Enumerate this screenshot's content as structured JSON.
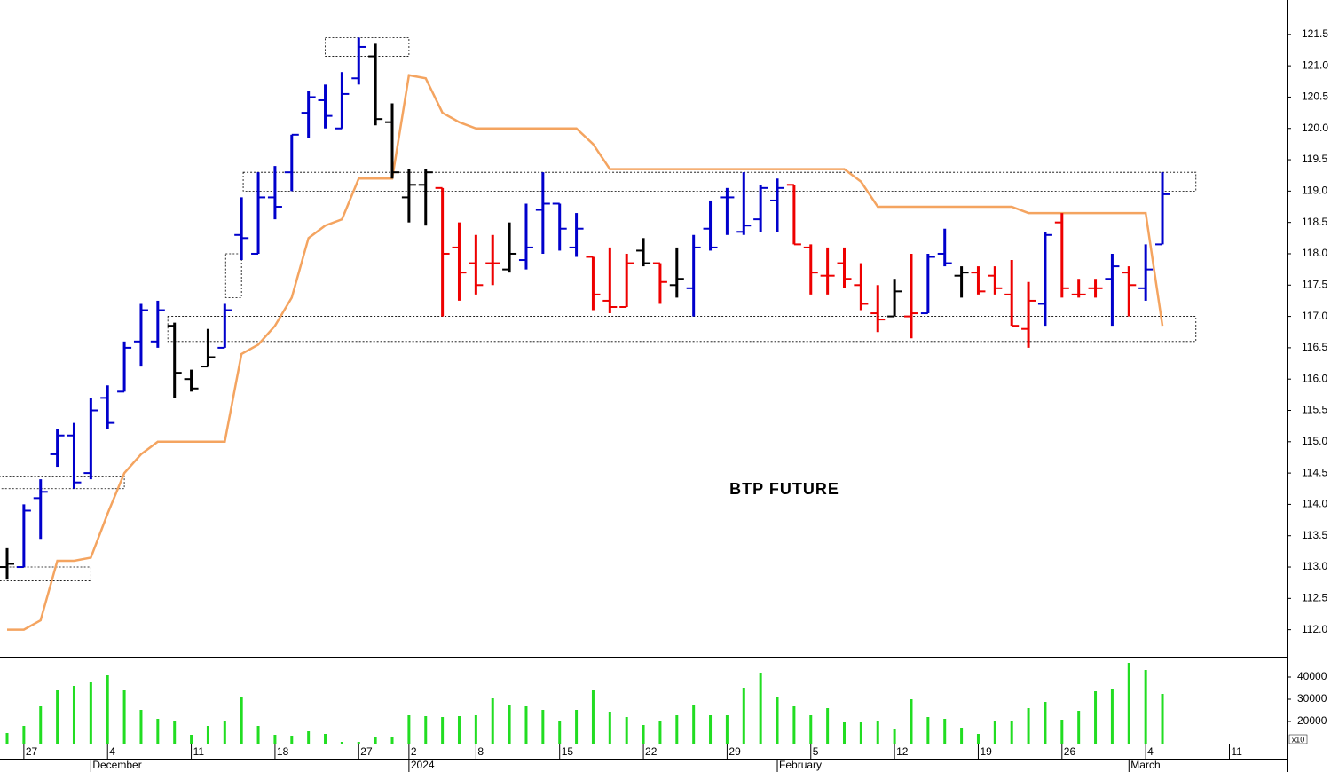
{
  "chart_data": [
    {
      "type": "ohlc",
      "title": "BTP FUTURE",
      "categories": [
        null,
        "27",
        null,
        null,
        null,
        null,
        "4",
        null,
        null,
        null,
        null,
        "11",
        null,
        null,
        null,
        null,
        "18",
        null,
        null,
        null,
        null,
        "27",
        null,
        null,
        "2",
        null,
        null,
        null,
        "8",
        null,
        null,
        null,
        null,
        "15",
        null,
        null,
        null,
        null,
        "22",
        null,
        null,
        null,
        null,
        "29",
        null,
        null,
        null,
        null,
        "5",
        null,
        null,
        null,
        null,
        "12",
        null,
        null,
        null,
        null,
        "19",
        null,
        null,
        null,
        null,
        "26",
        null,
        null,
        null,
        null,
        "4",
        null,
        null,
        null,
        null,
        "11",
        null,
        null,
        null
      ],
      "months": [
        null,
        null,
        null,
        null,
        null,
        "December",
        null,
        null,
        null,
        null,
        null,
        null,
        null,
        null,
        null,
        null,
        null,
        null,
        null,
        null,
        null,
        null,
        null,
        null,
        "2024",
        null,
        null,
        null,
        null,
        null,
        null,
        null,
        null,
        null,
        null,
        null,
        null,
        null,
        null,
        null,
        null,
        null,
        null,
        null,
        null,
        null,
        "February",
        null,
        null,
        null,
        null,
        null,
        null,
        null,
        null,
        null,
        null,
        null,
        null,
        null,
        null,
        null,
        null,
        null,
        null,
        null,
        null,
        "March",
        null,
        null,
        null,
        null,
        null,
        null,
        null,
        null,
        null
      ],
      "open": [
        113.0,
        113.0,
        114.1,
        114.8,
        115.1,
        114.5,
        115.7,
        115.8,
        116.6,
        116.6,
        116.85,
        116.0,
        116.2,
        116.5,
        118.3,
        118.0,
        118.9,
        119.3,
        120.25,
        120.45,
        120.0,
        120.8,
        121.15,
        120.1,
        118.9,
        119.1,
        119.05,
        118.1,
        117.85,
        117.85,
        117.75,
        117.9,
        118.7,
        118.8,
        118.1,
        117.95,
        117.25,
        117.15,
        118.05,
        117.85,
        117.5,
        117.45,
        118.4,
        118.9,
        118.35,
        118.55,
        118.85,
        119.1,
        118.1,
        117.65,
        117.85,
        117.5,
        117.05,
        117.0,
        117.0,
        117.05,
        118.0,
        117.65,
        117.7,
        117.65,
        117.35,
        116.8,
        117.2,
        118.5,
        117.35,
        117.45,
        117.6,
        117.7,
        117.45,
        118.15,
        null,
        null,
        null,
        null,
        null,
        null,
        null
      ],
      "high": [
        113.3,
        114.0,
        114.4,
        115.2,
        115.3,
        115.7,
        115.9,
        116.6,
        117.2,
        117.25,
        116.9,
        116.15,
        116.8,
        117.2,
        118.9,
        119.3,
        119.4,
        119.9,
        120.6,
        120.7,
        120.9,
        121.45,
        121.35,
        120.4,
        119.35,
        119.35,
        119.05,
        118.5,
        118.3,
        118.3,
        118.5,
        118.8,
        119.3,
        118.8,
        118.65,
        117.95,
        118.1,
        118.0,
        118.25,
        117.85,
        118.1,
        118.3,
        118.85,
        119.05,
        119.3,
        119.1,
        119.2,
        119.1,
        118.15,
        118.1,
        118.1,
        117.85,
        117.5,
        117.6,
        118.0,
        118.0,
        118.4,
        117.8,
        117.8,
        117.8,
        117.9,
        117.55,
        118.35,
        118.65,
        117.6,
        117.6,
        118.0,
        117.8,
        118.15,
        119.3,
        null,
        null,
        null,
        null,
        null,
        null,
        null
      ],
      "low": [
        112.8,
        113.0,
        113.45,
        114.6,
        114.25,
        114.4,
        115.2,
        115.8,
        116.2,
        116.5,
        115.7,
        115.8,
        116.2,
        116.5,
        117.9,
        118.0,
        118.55,
        119.0,
        119.85,
        120.0,
        120.0,
        120.7,
        120.05,
        119.2,
        118.5,
        118.45,
        117.0,
        117.25,
        117.35,
        117.5,
        117.7,
        117.75,
        118.0,
        118.05,
        117.95,
        117.1,
        117.05,
        117.15,
        117.8,
        117.2,
        117.3,
        117.0,
        118.05,
        118.3,
        118.3,
        118.35,
        118.35,
        118.15,
        117.35,
        117.35,
        117.45,
        117.1,
        116.75,
        117.0,
        116.65,
        117.05,
        117.8,
        117.3,
        117.35,
        117.35,
        116.85,
        116.5,
        116.85,
        117.3,
        117.3,
        117.3,
        116.85,
        117.0,
        117.25,
        118.15,
        null,
        null,
        null,
        null,
        null,
        null,
        null
      ],
      "close": [
        113.05,
        113.9,
        114.2,
        115.1,
        114.35,
        115.5,
        115.3,
        116.5,
        117.1,
        117.1,
        116.1,
        115.85,
        116.35,
        117.1,
        118.25,
        118.9,
        118.75,
        119.9,
        120.5,
        120.2,
        120.55,
        121.3,
        120.15,
        119.3,
        119.1,
        119.3,
        118.0,
        117.7,
        117.5,
        117.85,
        118.0,
        118.1,
        118.8,
        118.4,
        118.4,
        117.35,
        117.15,
        117.85,
        117.85,
        117.55,
        117.6,
        118.1,
        118.1,
        118.9,
        118.45,
        119.05,
        119.05,
        118.15,
        117.7,
        117.65,
        117.6,
        117.2,
        116.95,
        117.4,
        117.05,
        117.95,
        117.85,
        117.7,
        117.4,
        117.45,
        116.85,
        117.25,
        118.3,
        117.45,
        117.35,
        117.45,
        117.8,
        117.5,
        117.75,
        118.95,
        null,
        null,
        null,
        null,
        null,
        null,
        null
      ],
      "colors": [
        "#000000",
        "#0000cc",
        "#0000cc",
        "#0000cc",
        "#0000cc",
        "#0000cc",
        "#0000cc",
        "#0000cc",
        "#0000cc",
        "#0000cc",
        "#000000",
        "#000000",
        "#000000",
        "#0000cc",
        "#0000cc",
        "#0000cc",
        "#0000cc",
        "#0000cc",
        "#0000cc",
        "#0000cc",
        "#0000cc",
        "#0000cc",
        "#000000",
        "#000000",
        "#000000",
        "#000000",
        "#ee0000",
        "#ee0000",
        "#ee0000",
        "#ee0000",
        "#000000",
        "#0000cc",
        "#0000cc",
        "#0000cc",
        "#0000cc",
        "#ee0000",
        "#ee0000",
        "#ee0000",
        "#000000",
        "#ee0000",
        "#000000",
        "#0000cc",
        "#0000cc",
        "#0000cc",
        "#0000cc",
        "#0000cc",
        "#0000cc",
        "#ee0000",
        "#ee0000",
        "#ee0000",
        "#ee0000",
        "#ee0000",
        "#ee0000",
        "#000000",
        "#ee0000",
        "#0000cc",
        "#0000cc",
        "#000000",
        "#ee0000",
        "#ee0000",
        "#ee0000",
        "#ee0000",
        "#0000cc",
        "#ee0000",
        "#ee0000",
        "#ee0000",
        "#0000cc",
        "#ee0000",
        "#0000cc",
        "#0000cc",
        null,
        null,
        null,
        null,
        null,
        null,
        null
      ],
      "overlay": {
        "color": "#f4a460",
        "values": [
          112.0,
          112.0,
          112.15,
          113.1,
          113.1,
          113.15,
          113.85,
          114.5,
          114.8,
          115.0,
          115.0,
          115.0,
          115.0,
          115.0,
          116.4,
          116.55,
          116.85,
          117.3,
          118.25,
          118.45,
          118.55,
          119.2,
          119.2,
          119.2,
          120.85,
          120.8,
          120.25,
          120.1,
          120.0,
          120.0,
          120.0,
          120.0,
          120.0,
          120.0,
          120.0,
          119.75,
          119.35,
          119.35,
          119.35,
          119.35,
          119.35,
          119.35,
          119.35,
          119.35,
          119.35,
          119.35,
          119.35,
          119.35,
          119.35,
          119.35,
          119.35,
          119.15,
          118.75,
          118.75,
          118.75,
          118.75,
          118.75,
          118.75,
          118.75,
          118.75,
          118.75,
          118.65,
          118.65,
          118.65,
          118.65,
          118.65,
          118.65,
          118.65,
          118.65,
          116.85,
          null,
          null,
          null,
          null,
          null,
          null,
          null
        ]
      },
      "boxes": [
        {
          "x": [
            -0.5,
            5
          ],
          "range": [
            112.78,
            113.0
          ]
        },
        {
          "x": [
            -0.5,
            7
          ],
          "range": [
            114.25,
            114.45
          ]
        },
        {
          "x": [
            13.05,
            14
          ],
          "range": [
            117.3,
            118.0
          ]
        },
        {
          "x": [
            19,
            24
          ],
          "range": [
            121.15,
            121.45
          ]
        },
        {
          "x": [
            14.1,
            71
          ],
          "range": [
            119.0,
            119.3
          ]
        },
        {
          "x": [
            9.6,
            71
          ],
          "range": [
            116.6,
            117.0
          ]
        }
      ],
      "ylim": [
        111.57,
        122.05
      ],
      "yticks": [
        {
          "value": 112,
          "label": "112.0"
        },
        112.5,
        {
          "value": 113,
          "label": "113.0"
        },
        113.5,
        {
          "value": 114,
          "label": "114.0"
        },
        114.5,
        {
          "value": 115,
          "label": "115.0"
        },
        115.5,
        {
          "value": 116,
          "label": "116.0"
        },
        116.5,
        {
          "value": 117,
          "label": "117.0"
        },
        117.5,
        {
          "value": 118,
          "label": "118.0"
        },
        118.5,
        {
          "value": 119,
          "label": "119.0"
        },
        119.5,
        {
          "value": 120,
          "label": "120.0"
        },
        120.5,
        {
          "value": 121,
          "label": "121.0"
        },
        121.5
      ]
    },
    {
      "type": "bar",
      "color": "#22dd22",
      "unit_label": "x10",
      "values": [
        14800,
        18000,
        26800,
        34000,
        36000,
        37600,
        40800,
        34000,
        25200,
        21200,
        20000,
        14000,
        18000,
        20000,
        30800,
        18000,
        14000,
        13600,
        15600,
        14400,
        10800,
        10800,
        13200,
        13200,
        22800,
        22400,
        22000,
        22400,
        22800,
        30400,
        27600,
        26800,
        25200,
        20000,
        25200,
        34000,
        24400,
        22000,
        18400,
        20000,
        22800,
        27600,
        22800,
        22800,
        35200,
        42000,
        30800,
        26800,
        22800,
        26000,
        19600,
        19600,
        20400,
        16400,
        30000,
        22000,
        21200,
        17200,
        14400,
        20000,
        20400,
        26000,
        28800,
        20800,
        24800,
        33600,
        34800,
        46400,
        43200,
        32400,
        null,
        null,
        null,
        null,
        null,
        null,
        null
      ],
      "ylim": [
        10000,
        48800
      ],
      "yticks": [
        20000,
        30000,
        40000
      ]
    }
  ]
}
